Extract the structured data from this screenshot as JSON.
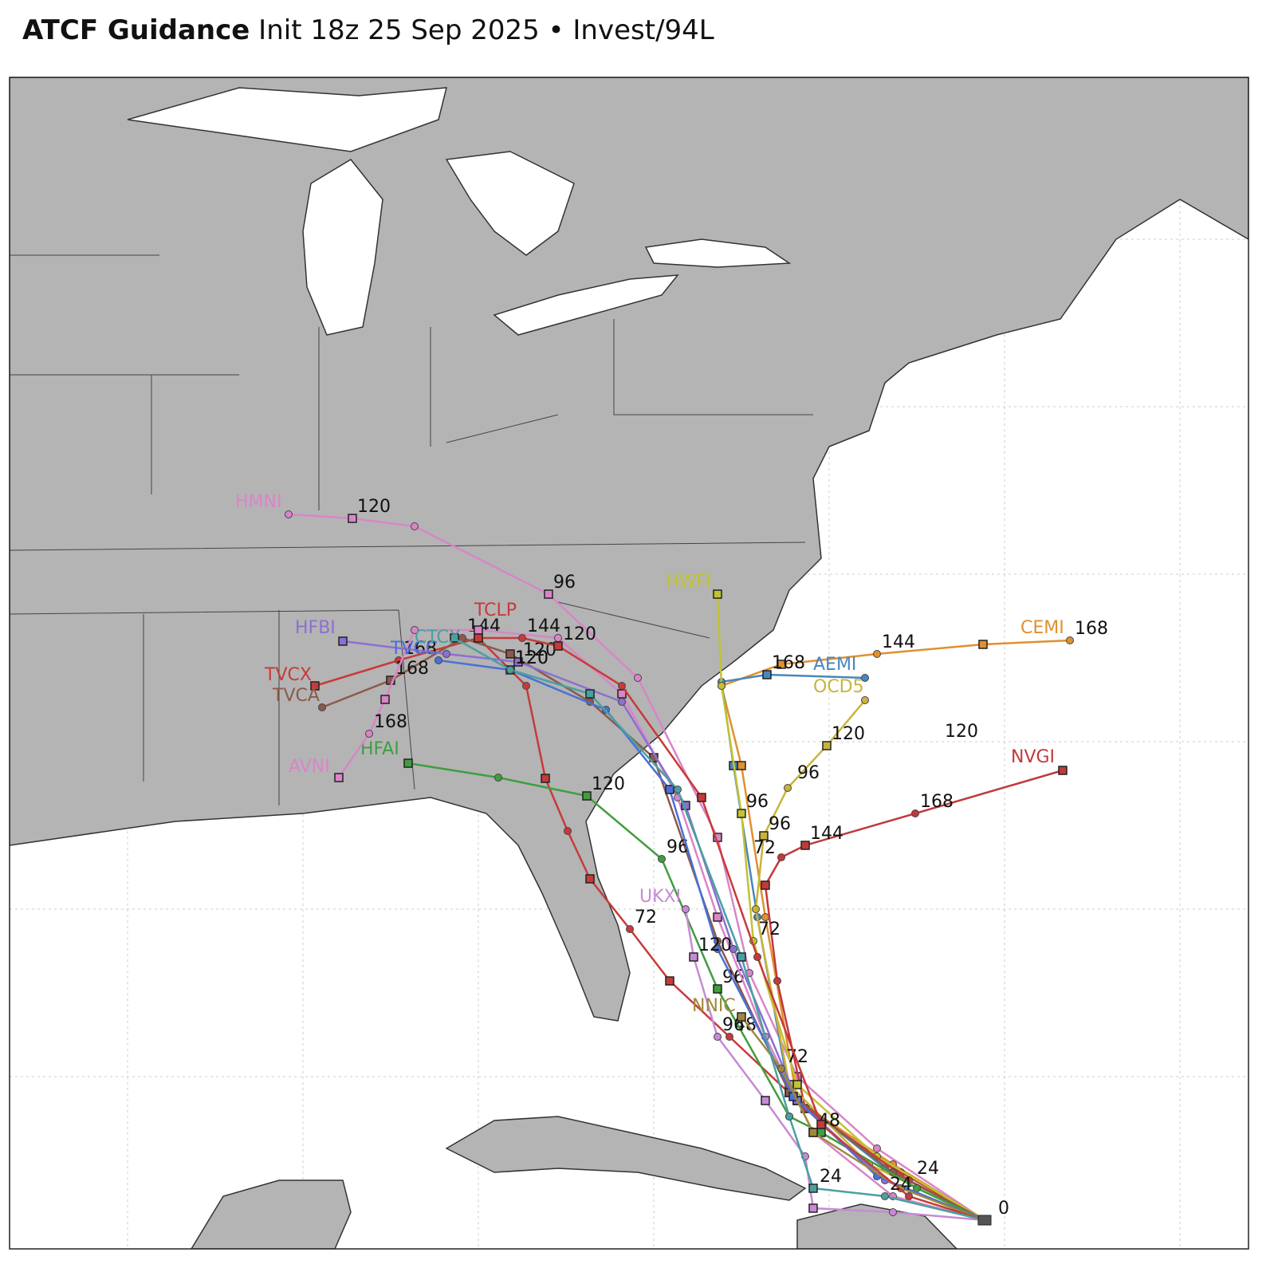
{
  "header": {
    "title": "ATCF Guidance",
    "subtitle": "Init 18z 25 Sep 2025 • Invest/94L"
  },
  "models": [
    {
      "name": "HMNI",
      "color": "#d985c8",
      "labels": [
        "120",
        "96"
      ]
    },
    {
      "name": "CEMI",
      "color": "#e0902e",
      "labels": [
        "144",
        "168"
      ]
    },
    {
      "name": "AEMI",
      "color": "#4a86bd",
      "labels": [
        "168"
      ]
    },
    {
      "name": "NVGI",
      "color": "#c0393b",
      "labels": [
        "144",
        "168"
      ]
    },
    {
      "name": "HWFI",
      "color": "#c2c232",
      "labels": [
        "96",
        "72"
      ]
    },
    {
      "name": "OCD5",
      "color": "#c9b43a",
      "labels": [
        "96",
        "120"
      ]
    },
    {
      "name": "TVCX",
      "color": "#c83a3a",
      "labels": [
        "168",
        "72",
        "48"
      ]
    },
    {
      "name": "TVCA",
      "color": "#8b5a4a",
      "labels": [
        "168",
        "144"
      ]
    },
    {
      "name": "HFAI",
      "color": "#3f9e3f",
      "labels": [
        "120",
        "96",
        "96"
      ]
    },
    {
      "name": "AVNI",
      "color": "#d985c8",
      "labels": [
        "168"
      ]
    },
    {
      "name": "HFBI",
      "color": "#8c6fd2",
      "labels": [
        "120"
      ]
    },
    {
      "name": "TVCC",
      "color": "#4a6fd8",
      "labels": [
        "120"
      ]
    },
    {
      "name": "UKXI",
      "color": "#c78ad4",
      "labels": [
        "120",
        "96"
      ]
    },
    {
      "name": "NNIC",
      "color": "#a0883a",
      "labels": [
        "72",
        "48"
      ]
    },
    {
      "name": "TCLP",
      "color": "#c83a3a",
      "labels": [
        "144",
        "120"
      ]
    },
    {
      "name": "CTCX",
      "color": "#4aa0a0",
      "labels": [
        "120",
        "24"
      ]
    }
  ],
  "other_labels": [
    "120",
    "0",
    "24",
    "24",
    "72",
    "96"
  ]
}
